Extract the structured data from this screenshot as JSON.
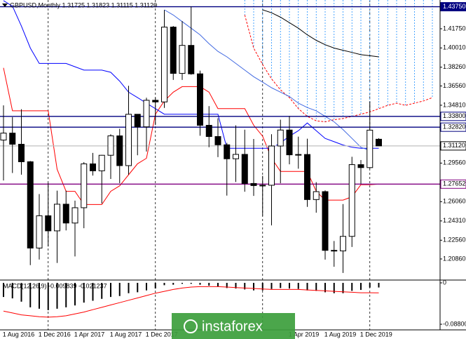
{
  "chart_data": {
    "type": "candlestick",
    "title": "GBPUSD,Monthly  1.31725 1.31823 1.31115 1.31120",
    "categories": [
      null,
      "1 Aug 2016",
      null,
      null,
      null,
      "1 Dec 2016",
      null,
      null,
      null,
      "1 Apr 2017",
      null,
      null,
      null,
      "1 Aug 2017",
      null,
      null,
      null,
      "1 Dec 2017",
      null,
      null,
      null,
      null,
      null,
      null,
      null,
      null,
      null,
      null,
      null,
      null,
      null,
      null,
      null,
      "1 Apr 2019",
      null,
      null,
      null,
      "1 Aug 2019",
      null,
      null,
      null,
      "1 Dec 2019",
      null,
      null,
      null,
      null,
      null,
      null,
      null
    ],
    "open": [
      1.3165,
      1.3228,
      1.3127,
      1.2968,
      1.2185,
      1.2478,
      1.2341,
      1.2583,
      1.2412,
      1.2551,
      1.2949,
      1.2886,
      1.3027,
      1.3203,
      1.2933,
      1.3399,
      1.3285,
      1.3526,
      1.3511,
      1.419,
      1.377,
      1.4024,
      1.3766,
      1.3299,
      1.3197,
      1.3122,
      1.2995,
      1.3035,
      1.2771,
      1.2752,
      1.2755,
      1.3111,
      1.3256,
      1.3031,
      1.3034,
      1.2625,
      1.2697,
      1.2164,
      1.2159,
      1.2291,
      1.2942,
      1.2915,
      1.31725,
      null,
      null,
      null,
      null,
      null,
      null
    ],
    "high": [
      1.348,
      1.3373,
      1.3445,
      1.2975,
      1.2675,
      1.2775,
      1.2706,
      1.2706,
      1.2615,
      1.2965,
      1.3048,
      1.303,
      1.3218,
      1.3267,
      1.3657,
      1.34,
      1.3549,
      1.3549,
      1.4345,
      1.42,
      1.4245,
      1.4377,
      1.3795,
      1.3473,
      1.3363,
      1.314,
      1.3298,
      1.3259,
      1.3175,
      1.284,
      1.3218,
      1.335,
      1.3383,
      1.3196,
      1.3177,
      1.2783,
      1.2708,
      1.2249,
      1.2584,
      1.3013,
      1.2984,
      1.3515,
      1.31823,
      null,
      null,
      null,
      null,
      null,
      null
    ],
    "low": [
      1.2798,
      1.2866,
      1.2851,
      1.203,
      1.2081,
      1.2199,
      1.205,
      1.2345,
      1.2109,
      1.2365,
      1.2843,
      1.2589,
      1.2812,
      1.2774,
      1.2851,
      1.3027,
      1.3061,
      1.3301,
      1.3457,
      1.3711,
      1.3711,
      1.3758,
      1.3204,
      1.31,
      1.301,
      1.2661,
      1.2785,
      1.2696,
      1.2658,
      1.2477,
      1.2391,
      1.2773,
      1.2945,
      1.2905,
      1.2559,
      1.2506,
      1.208,
      1.2015,
      1.1959,
      1.2195,
      1.2768,
      1.2904,
      1.31115,
      null,
      null,
      null,
      null,
      null,
      null
    ],
    "close": [
      1.3228,
      1.3127,
      1.2968,
      1.2185,
      1.2478,
      1.2341,
      1.2583,
      1.2412,
      1.2551,
      1.2949,
      1.2886,
      1.3027,
      1.3203,
      1.2933,
      1.3399,
      1.3285,
      1.3526,
      1.3511,
      1.419,
      1.377,
      1.4024,
      1.3766,
      1.3299,
      1.3197,
      1.3122,
      1.2995,
      1.3035,
      1.2771,
      1.2752,
      1.2755,
      1.3111,
      1.3256,
      1.3031,
      1.3034,
      1.2625,
      1.2697,
      1.2164,
      1.2159,
      1.2291,
      1.2942,
      1.2915,
      1.3255,
      1.3112,
      null,
      null,
      null,
      null,
      null,
      null
    ],
    "bull_color": "#ffffff",
    "bear_color": "#000000",
    "ylim": [
      1.1901,
      1.4436
    ],
    "yticks": [
      {
        "value": 1.4175,
        "label": "1.41750"
      },
      {
        "value": 1.4001,
        "label": "1.40010"
      },
      {
        "value": 1.3826,
        "label": "1.38260"
      },
      {
        "value": 1.3656,
        "label": "1.36560"
      },
      {
        "value": 1.3481,
        "label": "1.34810"
      },
      {
        "value": 1.2956,
        "label": "1.29560"
      },
      {
        "value": 1.2606,
        "label": "1.26060"
      },
      {
        "value": 1.2431,
        "label": "1.24310"
      },
      {
        "value": 1.2256,
        "label": "1.22560"
      },
      {
        "value": 1.2086,
        "label": "1.20860"
      }
    ],
    "levels": [
      {
        "value": 1.4375,
        "label": "1.43750",
        "color": "#000080"
      },
      {
        "value": 1.338,
        "label": "1.33800",
        "color": "#000080"
      },
      {
        "value": 1.3282,
        "label": "1.32820",
        "color": "#000080"
      },
      {
        "value": 1.3112,
        "label": "1.31120",
        "color": "#c0c0c0"
      },
      {
        "value": 1.27652,
        "label": "1.27652",
        "color": "#800080"
      }
    ],
    "overlays": [
      {
        "color": "#ff0000",
        "values": [
          1.382,
          1.343,
          1.343,
          1.343,
          1.343,
          1.343,
          1.29,
          1.27,
          1.27,
          1.258,
          1.258,
          1.258,
          1.27,
          1.275,
          1.285,
          1.295,
          1.3,
          1.34,
          1.352,
          1.36,
          1.365,
          1.365,
          1.365,
          1.36,
          1.345,
          1.345,
          1.345,
          1.345,
          1.33,
          1.32,
          1.3,
          1.288,
          1.288,
          1.288,
          1.288,
          1.27,
          1.262,
          1.262,
          1.262,
          1.265,
          1.276,
          1.276,
          1.2765,
          null,
          null,
          null,
          null,
          null,
          null
        ]
      },
      {
        "color": "#0000ff",
        "values": [
          1.443,
          1.438,
          1.42,
          1.4,
          1.386,
          1.386,
          1.386,
          1.386,
          1.383,
          1.38,
          1.38,
          1.38,
          1.378,
          1.37,
          1.36,
          1.355,
          1.35,
          1.345,
          1.34,
          1.34,
          1.34,
          1.34,
          1.34,
          1.34,
          1.34,
          1.309,
          1.309,
          1.309,
          1.309,
          1.309,
          1.309,
          1.314,
          1.32,
          1.325,
          1.332,
          1.325,
          1.318,
          1.315,
          1.312,
          1.31,
          1.309,
          1.309,
          1.309,
          null,
          null,
          null,
          null,
          null,
          null
        ]
      },
      {
        "color": "#4169e1",
        "values": [
          null,
          null,
          null,
          null,
          null,
          null,
          null,
          null,
          null,
          null,
          null,
          null,
          null,
          null,
          null,
          null,
          null,
          null,
          1.4347,
          1.43,
          1.424,
          1.418,
          1.412,
          1.404,
          1.397,
          1.392,
          1.386,
          1.38,
          1.374,
          1.369,
          1.364,
          1.36,
          1.356,
          1.35,
          1.346,
          1.343,
          1.338,
          1.333,
          1.326,
          1.318,
          1.31,
          1.307,
          null,
          null,
          null,
          null,
          null,
          null,
          null
        ]
      },
      {
        "color": "#000000",
        "values": [
          null,
          null,
          null,
          null,
          null,
          null,
          null,
          null,
          null,
          null,
          null,
          null,
          null,
          null,
          null,
          null,
          null,
          null,
          null,
          null,
          null,
          null,
          null,
          null,
          null,
          null,
          null,
          null,
          null,
          1.4347,
          1.432,
          1.428,
          1.423,
          1.418,
          1.412,
          1.407,
          1.403,
          1.4,
          1.398,
          1.396,
          1.394,
          1.393,
          1.392,
          null,
          null,
          null,
          null,
          null,
          null
        ]
      }
    ],
    "cloud": {
      "color": "#ff0000",
      "hatch_color": "#1e90ff",
      "values": [
        null,
        null,
        null,
        null,
        null,
        null,
        null,
        null,
        null,
        null,
        null,
        null,
        null,
        null,
        null,
        null,
        null,
        null,
        null,
        null,
        null,
        null,
        null,
        null,
        null,
        null,
        null,
        1.43,
        1.4,
        1.385,
        1.372,
        1.362,
        1.355,
        1.345,
        1.338,
        1.334,
        1.333,
        1.335,
        1.336,
        1.338,
        1.34,
        1.342,
        1.345,
        1.348,
        1.35,
        1.348,
        1.35,
        1.352,
        1.355
      ]
    },
    "macd": {
      "title": "MACD(12,26,9) -0.009839 -0.021237",
      "ylim": [
        -0.088003,
        0
      ],
      "yticks": [
        0,
        -0.088003
      ],
      "bar_color": "#000000",
      "signal_color": "#ff0000",
      "histogram": [
        -0.03,
        -0.033,
        -0.04,
        -0.052,
        -0.055,
        -0.058,
        -0.055,
        -0.052,
        -0.048,
        -0.042,
        -0.038,
        -0.034,
        -0.03,
        -0.028,
        -0.022,
        -0.02,
        -0.016,
        -0.012,
        -0.005,
        -0.004,
        -0.002,
        -0.002,
        -0.004,
        -0.006,
        -0.008,
        -0.011,
        -0.012,
        -0.014,
        -0.016,
        -0.016,
        -0.013,
        -0.011,
        -0.012,
        -0.013,
        -0.016,
        -0.017,
        -0.02,
        -0.022,
        -0.022,
        -0.017,
        -0.015,
        -0.01,
        -0.009839,
        null,
        null,
        null,
        null,
        null,
        null
      ],
      "signal": [
        -0.06,
        -0.064,
        -0.068,
        -0.07,
        -0.072,
        -0.073,
        -0.072,
        -0.07,
        -0.066,
        -0.062,
        -0.057,
        -0.052,
        -0.047,
        -0.042,
        -0.037,
        -0.032,
        -0.027,
        -0.022,
        -0.018,
        -0.014,
        -0.011,
        -0.009,
        -0.008,
        -0.008,
        -0.008,
        -0.009,
        -0.01,
        -0.011,
        -0.012,
        -0.013,
        -0.014,
        -0.014,
        -0.014,
        -0.014,
        -0.015,
        -0.016,
        -0.017,
        -0.018,
        -0.019,
        -0.02,
        -0.021,
        -0.021,
        -0.021237,
        null,
        null,
        null,
        null,
        null,
        null
      ]
    },
    "watermark": "instaforex"
  }
}
